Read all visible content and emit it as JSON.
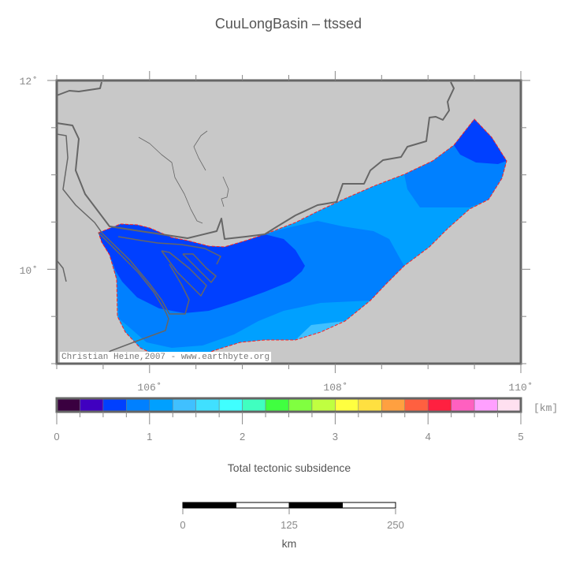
{
  "title": "CuuLongBasin – ttssed",
  "map": {
    "background_color": "#c8c8c8",
    "coastline_color": "#666666",
    "basin_outline_color": "#ff2020",
    "lon_range": [
      105,
      110
    ],
    "lat_range": [
      9,
      12
    ],
    "lon_labels": [
      "106˚",
      "108˚",
      "110˚"
    ],
    "lat_labels": [
      "12˚",
      "10˚"
    ],
    "credit": "Christian Heine,2007 - www.earthbyte.org",
    "fill_colors": {
      "deepest": "#0040ff",
      "deep": "#0080ff",
      "medium": "#00a0ff",
      "shallow": "#40c0ff"
    }
  },
  "colorbar": {
    "unit": "[km]",
    "range": [
      0,
      5
    ],
    "step": 0.25,
    "colors": [
      "#3a0040",
      "#4000c0",
      "#0040ff",
      "#0080ff",
      "#00a0ff",
      "#40c0ff",
      "#40e0ff",
      "#40ffff",
      "#40ffc0",
      "#40ff40",
      "#80ff40",
      "#c0ff40",
      "#ffff40",
      "#ffe040",
      "#ffa040",
      "#ff6040",
      "#ff2040",
      "#ff60c0",
      "#ffa0ff",
      "#ffe0f0"
    ],
    "tick_labels": [
      "0",
      "1",
      "2",
      "3",
      "4",
      "5"
    ],
    "label": "Total tectonic subsidence"
  },
  "scalebar": {
    "tick_labels": [
      "0",
      "125",
      "250"
    ],
    "unit": "km"
  }
}
